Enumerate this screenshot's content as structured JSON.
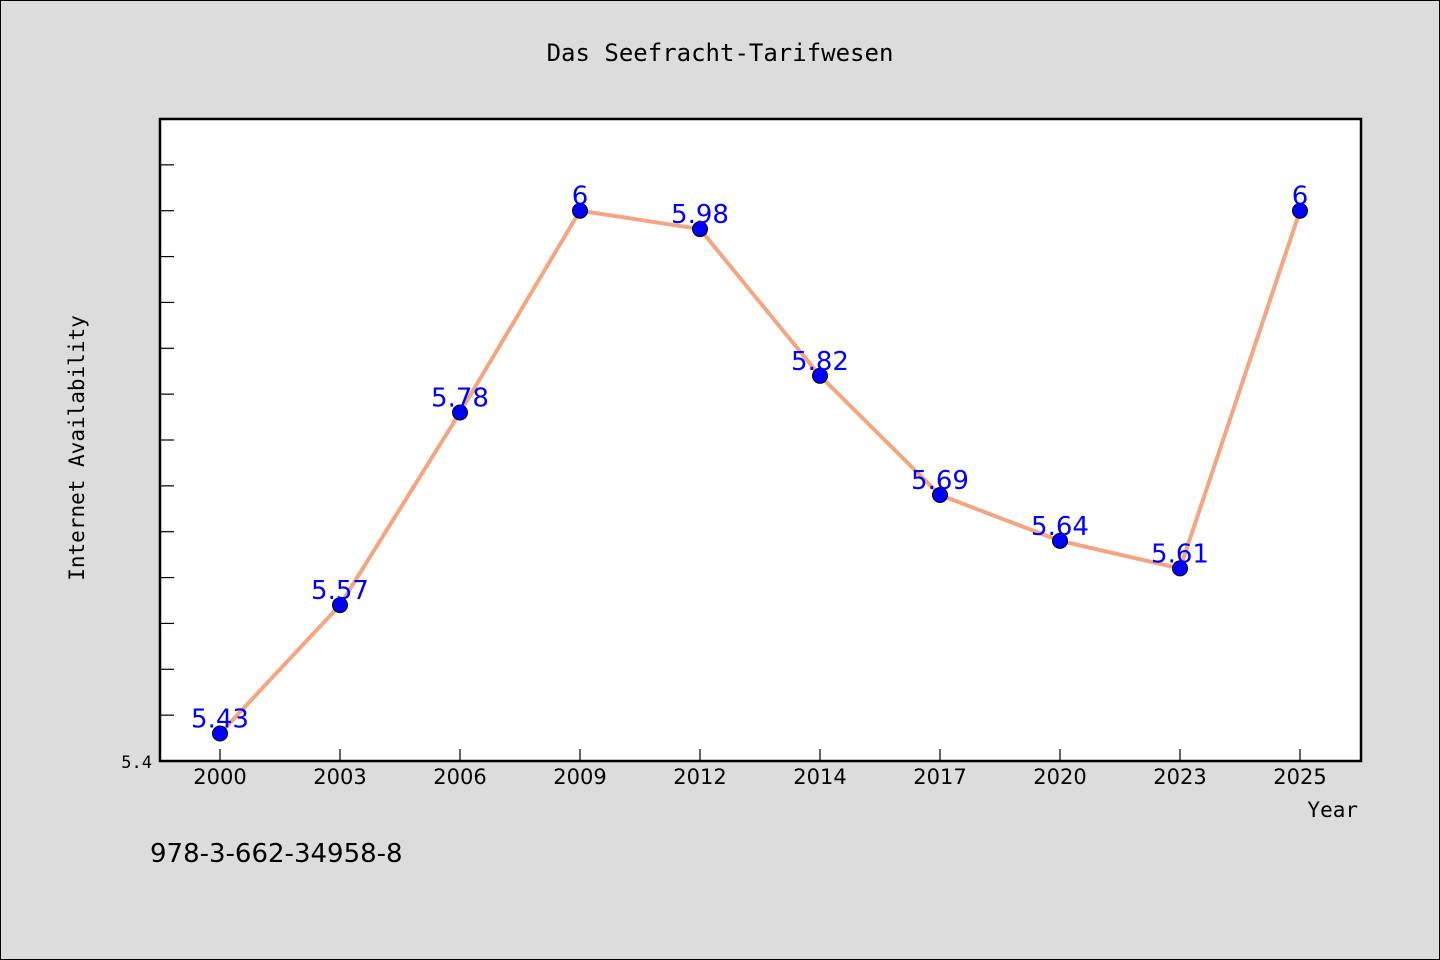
{
  "chart_data": {
    "type": "line",
    "title": "Das Seefracht-Tarifwesen",
    "xlabel": "Year",
    "ylabel": "Internet Availability",
    "categories": [
      "2000",
      "2003",
      "2006",
      "2009",
      "2012",
      "2014",
      "2017",
      "2020",
      "2023",
      "2025"
    ],
    "series": [
      {
        "values": [
          5.43,
          5.57,
          5.78,
          6,
          5.98,
          5.82,
          5.69,
          5.64,
          5.61,
          6
        ],
        "labels": [
          "5.43",
          "5.57",
          "5.78",
          "6",
          "5.98",
          "5.82",
          "5.69",
          "5.64",
          "5.61",
          "6"
        ],
        "line_color": "#f4a582",
        "marker_color": "#0000ff",
        "label_color": "#0000ff"
      }
    ],
    "ylim": [
      5.4,
      6.1
    ],
    "y_tick_labels": [
      {
        "value": 5.4,
        "label": "5.4"
      }
    ],
    "y_minor_step": 0.05,
    "grid": false,
    "legend": "none",
    "background": "#ffffff"
  },
  "footer": {
    "isbn": "978-3-662-34958-8"
  }
}
